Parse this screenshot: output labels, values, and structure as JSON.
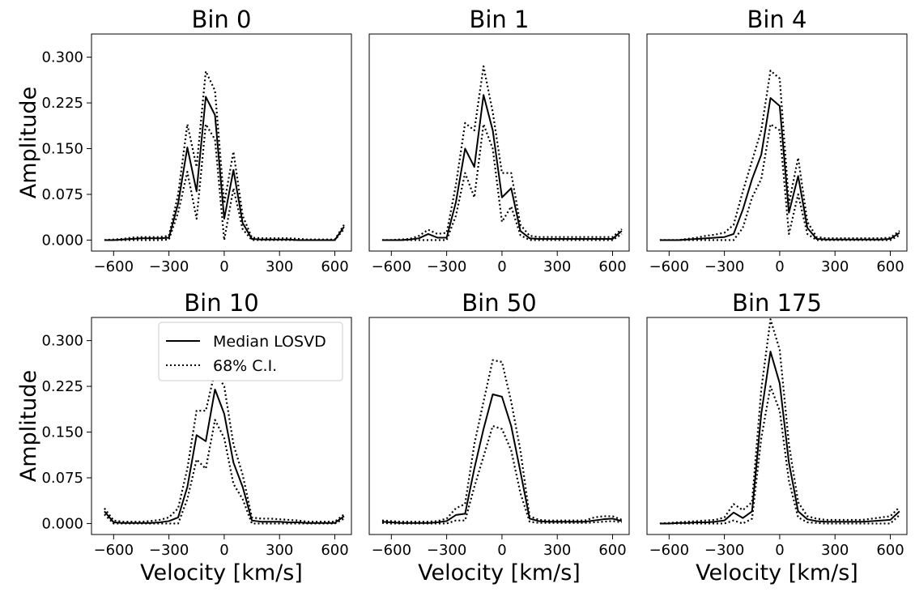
{
  "chart_data": [
    {
      "type": "line",
      "title": "Bin 0",
      "xlabel": "",
      "ylabel": "Amplitude",
      "xlim": [
        -720,
        690
      ],
      "ylim": [
        -0.018,
        0.338
      ],
      "xticks": [
        -600,
        -300,
        0,
        300,
        600
      ],
      "xtick_labels": [
        "−600",
        "−300",
        "0",
        "300",
        "600"
      ],
      "yticks": [
        0.0,
        0.075,
        0.15,
        0.225,
        0.3
      ],
      "ytick_labels": [
        "0.000",
        "0.075",
        "0.150",
        "0.225",
        "0.300"
      ],
      "x": [
        -650,
        -600,
        -550,
        -500,
        -450,
        -400,
        -350,
        -300,
        -250,
        -200,
        -150,
        -100,
        -50,
        0,
        50,
        100,
        150,
        200,
        250,
        300,
        350,
        400,
        450,
        500,
        550,
        600,
        650
      ],
      "series": [
        {
          "name": "Median LOSVD",
          "style": "solid",
          "values": [
            0,
            0,
            0.001,
            0.002,
            0.003,
            0.003,
            0.003,
            0.004,
            0.06,
            0.152,
            0.08,
            0.235,
            0.205,
            0.035,
            0.115,
            0.028,
            0.002,
            0.001,
            0.001,
            0.001,
            0.001,
            0,
            0,
            0,
            0,
            0,
            0.022
          ]
        },
        {
          "name": "68% C.I. upper",
          "style": "dotted",
          "values": [
            0,
            0.001,
            0.002,
            0.004,
            0.005,
            0.005,
            0.005,
            0.007,
            0.075,
            0.19,
            0.12,
            0.277,
            0.245,
            0.06,
            0.145,
            0.04,
            0.004,
            0.003,
            0.003,
            0.003,
            0.003,
            0.002,
            0.001,
            0.001,
            0.001,
            0.001,
            0.025
          ]
        },
        {
          "name": "68% C.I. lower",
          "style": "dotted",
          "values": [
            0,
            0,
            0,
            0,
            0,
            0,
            0,
            0.001,
            0.045,
            0.112,
            0.035,
            0.19,
            0.165,
            0,
            0.085,
            0.018,
            0,
            0,
            0,
            0,
            0,
            0,
            0,
            0,
            0,
            0,
            0.018
          ]
        }
      ]
    },
    {
      "type": "line",
      "title": "Bin 1",
      "xlabel": "",
      "ylabel": "",
      "xlim": [
        -720,
        690
      ],
      "ylim": [
        -0.018,
        0.338
      ],
      "xticks": [
        -600,
        -300,
        0,
        300,
        600
      ],
      "xtick_labels": [
        "−600",
        "−300",
        "0",
        "300",
        "600"
      ],
      "yticks": [],
      "ytick_labels": [],
      "x": [
        -650,
        -600,
        -550,
        -500,
        -450,
        -400,
        -350,
        -300,
        -250,
        -200,
        -150,
        -100,
        -50,
        0,
        50,
        100,
        150,
        200,
        250,
        300,
        350,
        400,
        450,
        500,
        550,
        600,
        650
      ],
      "series": [
        {
          "name": "Median LOSVD",
          "style": "solid",
          "values": [
            0,
            0,
            0,
            0.001,
            0.003,
            0.01,
            0.004,
            0.004,
            0.062,
            0.15,
            0.12,
            0.238,
            0.18,
            0.07,
            0.085,
            0.015,
            0.003,
            0.002,
            0.002,
            0.002,
            0.002,
            0.002,
            0.002,
            0.002,
            0.002,
            0.002,
            0.015
          ]
        },
        {
          "name": "68% C.I. upper",
          "style": "dotted",
          "values": [
            0,
            0,
            0.001,
            0.002,
            0.007,
            0.017,
            0.01,
            0.012,
            0.09,
            0.192,
            0.18,
            0.285,
            0.21,
            0.11,
            0.11,
            0.025,
            0.007,
            0.005,
            0.005,
            0.005,
            0.005,
            0.005,
            0.005,
            0.005,
            0.005,
            0.005,
            0.018
          ]
        },
        {
          "name": "68% C.I. lower",
          "style": "dotted",
          "values": [
            0,
            0,
            0,
            0,
            0,
            0,
            0,
            0,
            0.04,
            0.11,
            0.07,
            0.19,
            0.15,
            0.03,
            0.055,
            0.008,
            0,
            0,
            0,
            0,
            0,
            0,
            0,
            0,
            0,
            0,
            0.01
          ]
        }
      ]
    },
    {
      "type": "line",
      "title": "Bin 4",
      "xlabel": "",
      "ylabel": "",
      "xlim": [
        -720,
        690
      ],
      "ylim": [
        -0.018,
        0.338
      ],
      "xticks": [
        -600,
        -300,
        0,
        300,
        600
      ],
      "xtick_labels": [
        "−600",
        "−300",
        "0",
        "300",
        "600"
      ],
      "yticks": [],
      "ytick_labels": [],
      "x": [
        -650,
        -600,
        -550,
        -500,
        -450,
        -400,
        -350,
        -300,
        -250,
        -200,
        -150,
        -100,
        -50,
        0,
        50,
        100,
        150,
        200,
        250,
        300,
        350,
        400,
        450,
        500,
        550,
        600,
        650
      ],
      "series": [
        {
          "name": "Median LOSVD",
          "style": "solid",
          "values": [
            0,
            0,
            0,
            0.001,
            0.002,
            0.003,
            0.004,
            0.005,
            0.01,
            0.05,
            0.1,
            0.14,
            0.233,
            0.22,
            0.045,
            0.105,
            0.02,
            0.002,
            0.001,
            0.001,
            0.001,
            0.001,
            0.001,
            0.001,
            0.001,
            0.002,
            0.012
          ]
        },
        {
          "name": "68% C.I. upper",
          "style": "dotted",
          "values": [
            0,
            0,
            0,
            0.002,
            0.004,
            0.007,
            0.009,
            0.012,
            0.025,
            0.08,
            0.13,
            0.18,
            0.278,
            0.265,
            0.06,
            0.135,
            0.03,
            0.005,
            0.003,
            0.003,
            0.003,
            0.003,
            0.003,
            0.003,
            0.003,
            0.004,
            0.015
          ]
        },
        {
          "name": "68% C.I. lower",
          "style": "dotted",
          "values": [
            0,
            0,
            0,
            0,
            0,
            0,
            0,
            0,
            0,
            0.02,
            0.07,
            0.1,
            0.19,
            0.18,
            0.01,
            0.075,
            0.01,
            0,
            0,
            0,
            0,
            0,
            0,
            0,
            0,
            0,
            0.008
          ]
        }
      ]
    },
    {
      "type": "line",
      "title": "Bin 10",
      "xlabel": "Velocity [km/s]",
      "ylabel": "Amplitude",
      "xlim": [
        -720,
        690
      ],
      "ylim": [
        -0.018,
        0.338
      ],
      "xticks": [
        -600,
        -300,
        0,
        300,
        600
      ],
      "xtick_labels": [
        "−600",
        "−300",
        "0",
        "300",
        "600"
      ],
      "yticks": [
        0.0,
        0.075,
        0.15,
        0.225,
        0.3
      ],
      "ytick_labels": [
        "0.000",
        "0.075",
        "0.150",
        "0.225",
        "0.300"
      ],
      "x": [
        -650,
        -600,
        -550,
        -500,
        -450,
        -400,
        -350,
        -300,
        -250,
        -200,
        -150,
        -100,
        -50,
        0,
        50,
        100,
        150,
        200,
        250,
        300,
        350,
        400,
        450,
        500,
        550,
        600,
        650
      ],
      "series": [
        {
          "name": "Median LOSVD",
          "style": "solid",
          "values": [
            0.02,
            0.002,
            0.001,
            0.001,
            0.001,
            0.001,
            0.002,
            0.004,
            0.01,
            0.06,
            0.145,
            0.135,
            0.22,
            0.18,
            0.1,
            0.06,
            0.005,
            0.003,
            0.003,
            0.003,
            0.002,
            0.002,
            0.001,
            0.001,
            0.001,
            0.001,
            0.012
          ]
        },
        {
          "name": "68% C.I. upper",
          "style": "dotted",
          "values": [
            0.025,
            0.005,
            0.003,
            0.003,
            0.003,
            0.004,
            0.006,
            0.01,
            0.025,
            0.09,
            0.185,
            0.185,
            0.25,
            0.225,
            0.13,
            0.08,
            0.01,
            0.008,
            0.008,
            0.007,
            0.006,
            0.005,
            0.003,
            0.003,
            0.003,
            0.003,
            0.015
          ]
        },
        {
          "name": "68% C.I. lower",
          "style": "dotted",
          "values": [
            0.015,
            0,
            0,
            0,
            0,
            0,
            0,
            0,
            0,
            0.04,
            0.105,
            0.09,
            0.17,
            0.14,
            0.065,
            0.04,
            0,
            0,
            0,
            0,
            0,
            0,
            0,
            0,
            0,
            0,
            0.008
          ]
        }
      ]
    },
    {
      "type": "line",
      "title": "Bin 50",
      "xlabel": "Velocity [km/s]",
      "ylabel": "",
      "xlim": [
        -720,
        690
      ],
      "ylim": [
        -0.018,
        0.338
      ],
      "xticks": [
        -600,
        -300,
        0,
        300,
        600
      ],
      "xtick_labels": [
        "−600",
        "−300",
        "0",
        "300",
        "600"
      ],
      "yticks": [],
      "ytick_labels": [],
      "x": [
        -650,
        -600,
        -550,
        -500,
        -450,
        -400,
        -350,
        -300,
        -250,
        -200,
        -150,
        -100,
        -50,
        0,
        50,
        100,
        150,
        200,
        250,
        300,
        350,
        400,
        450,
        500,
        550,
        600,
        650
      ],
      "series": [
        {
          "name": "Median LOSVD",
          "style": "solid",
          "values": [
            0.003,
            0.002,
            0.001,
            0.001,
            0.001,
            0.001,
            0.002,
            0.004,
            0.014,
            0.016,
            0.09,
            0.155,
            0.212,
            0.208,
            0.16,
            0.085,
            0.008,
            0.004,
            0.003,
            0.003,
            0.003,
            0.003,
            0.003,
            0.005,
            0.007,
            0.008,
            0.004
          ]
        },
        {
          "name": "68% C.I. upper",
          "style": "dotted",
          "values": [
            0.005,
            0.004,
            0.003,
            0.003,
            0.003,
            0.003,
            0.004,
            0.008,
            0.025,
            0.032,
            0.13,
            0.2,
            0.268,
            0.265,
            0.2,
            0.12,
            0.012,
            0.006,
            0.005,
            0.005,
            0.005,
            0.005,
            0.005,
            0.01,
            0.012,
            0.012,
            0.006
          ]
        },
        {
          "name": "68% C.I. lower",
          "style": "dotted",
          "values": [
            0.001,
            0,
            0,
            0,
            0,
            0,
            0,
            0,
            0.005,
            0.005,
            0.06,
            0.11,
            0.16,
            0.155,
            0.12,
            0.05,
            0.003,
            0.001,
            0.001,
            0.001,
            0.001,
            0.001,
            0.001,
            0.002,
            0.003,
            0.004,
            0.002
          ]
        }
      ]
    },
    {
      "type": "line",
      "title": "Bin 175",
      "xlabel": "Velocity [km/s]",
      "ylabel": "",
      "xlim": [
        -720,
        690
      ],
      "ylim": [
        -0.018,
        0.338
      ],
      "xticks": [
        -600,
        -300,
        0,
        300,
        600
      ],
      "xtick_labels": [
        "−600",
        "−300",
        "0",
        "300",
        "600"
      ],
      "yticks": [],
      "ytick_labels": [],
      "x": [
        -650,
        -600,
        -550,
        -500,
        -450,
        -400,
        -350,
        -300,
        -250,
        -200,
        -150,
        -100,
        -50,
        0,
        50,
        100,
        150,
        200,
        250,
        300,
        350,
        400,
        450,
        500,
        550,
        600,
        650
      ],
      "series": [
        {
          "name": "Median LOSVD",
          "style": "solid",
          "values": [
            0,
            0,
            0.001,
            0.001,
            0.002,
            0.002,
            0.003,
            0.005,
            0.018,
            0.009,
            0.02,
            0.18,
            0.282,
            0.23,
            0.1,
            0.02,
            0.007,
            0.004,
            0.003,
            0.003,
            0.003,
            0.003,
            0.003,
            0.004,
            0.005,
            0.006,
            0.02
          ]
        },
        {
          "name": "68% C.I. upper",
          "style": "dotted",
          "values": [
            0,
            0.001,
            0.002,
            0.003,
            0.004,
            0.005,
            0.006,
            0.01,
            0.032,
            0.022,
            0.035,
            0.22,
            0.335,
            0.285,
            0.13,
            0.035,
            0.012,
            0.008,
            0.006,
            0.006,
            0.006,
            0.006,
            0.006,
            0.008,
            0.01,
            0.012,
            0.027
          ]
        },
        {
          "name": "68% C.I. lower",
          "style": "dotted",
          "values": [
            0,
            0,
            0,
            0,
            0,
            0,
            0,
            0,
            0.005,
            0,
            0.008,
            0.14,
            0.225,
            0.185,
            0.07,
            0.01,
            0.002,
            0.001,
            0,
            0,
            0,
            0,
            0,
            0,
            0,
            0,
            0.014
          ]
        }
      ]
    }
  ],
  "legend": {
    "items": [
      {
        "label": "Median LOSVD",
        "style": "solid"
      },
      {
        "label": "68% C.I.",
        "style": "dotted"
      }
    ]
  },
  "colors": {
    "line": "#000000",
    "frame": "#000000",
    "legend_border": "#cccccc",
    "background": "#ffffff"
  }
}
